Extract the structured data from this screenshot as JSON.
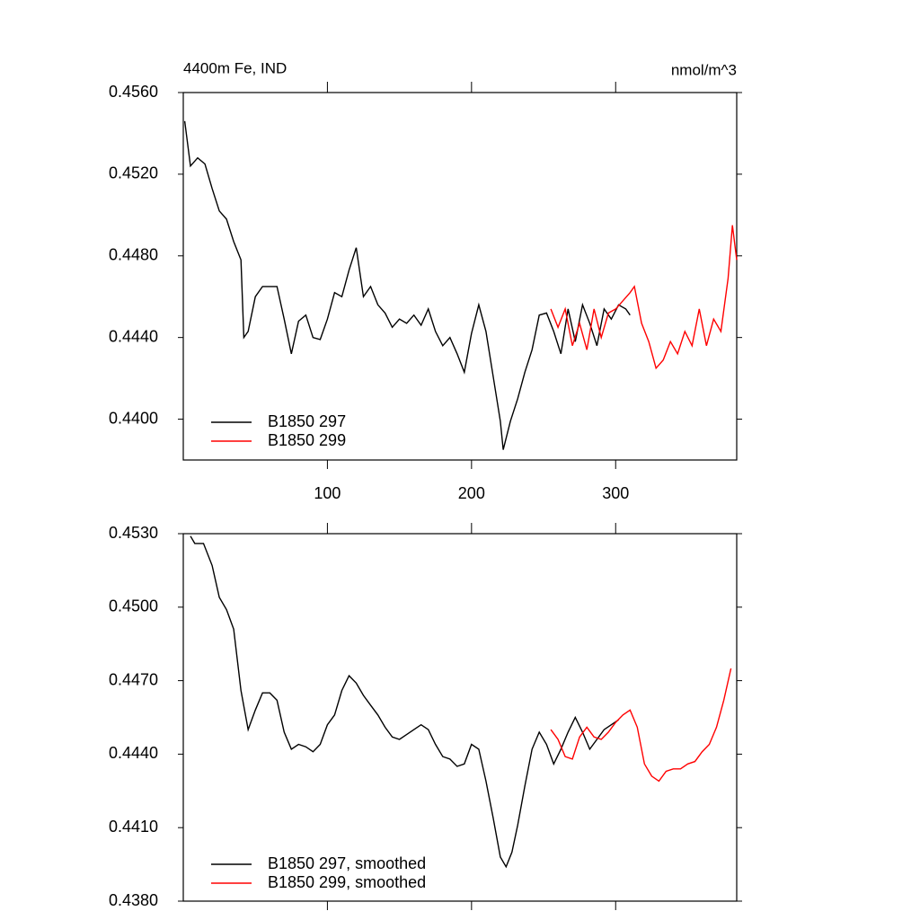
{
  "chart_data": [
    {
      "type": "line",
      "title": "4400m Fe, IND",
      "units": "nmol/m^3",
      "xlim": [
        0,
        384
      ],
      "xticks": [
        100,
        200,
        300
      ],
      "ylim": [
        0.438,
        0.456
      ],
      "yticks": [
        {
          "value": 0.456,
          "label": "0.4560"
        },
        {
          "value": 0.452,
          "label": "0.4520"
        },
        {
          "value": 0.448,
          "label": "0.4480"
        },
        {
          "value": 0.444,
          "label": "0.4440"
        },
        {
          "value": 0.44,
          "label": "0.4400"
        }
      ],
      "series": [
        {
          "name": "B1850 297",
          "color": "#000000",
          "x": [
            1,
            5,
            10,
            15,
            20,
            25,
            30,
            35,
            40,
            42,
            45,
            50,
            55,
            60,
            65,
            70,
            75,
            80,
            85,
            90,
            95,
            100,
            105,
            110,
            115,
            120,
            125,
            130,
            135,
            140,
            145,
            150,
            155,
            160,
            165,
            170,
            175,
            180,
            185,
            190,
            195,
            200,
            205,
            210,
            215,
            220,
            222,
            227,
            232,
            237,
            242,
            247,
            252,
            257,
            262,
            267,
            272,
            277,
            282,
            287,
            292,
            297,
            302,
            307,
            310
          ],
          "values": [
            0.4546,
            0.4524,
            0.4528,
            0.4525,
            0.4513,
            0.4502,
            0.4498,
            0.4487,
            0.4478,
            0.444,
            0.4443,
            0.446,
            0.4465,
            0.4465,
            0.4465,
            0.4449,
            0.4432,
            0.4448,
            0.4451,
            0.444,
            0.4439,
            0.4449,
            0.4462,
            0.446,
            0.4473,
            0.4484,
            0.446,
            0.4465,
            0.4456,
            0.4452,
            0.4445,
            0.4449,
            0.4447,
            0.4451,
            0.4446,
            0.4454,
            0.4443,
            0.4436,
            0.444,
            0.4432,
            0.4423,
            0.4442,
            0.4456,
            0.4443,
            0.4421,
            0.4399,
            0.4385,
            0.4399,
            0.441,
            0.4423,
            0.4434,
            0.4451,
            0.4452,
            0.4443,
            0.4432,
            0.4454,
            0.4438,
            0.4456,
            0.4447,
            0.4436,
            0.4454,
            0.4449,
            0.4456,
            0.4454,
            0.4451
          ]
        },
        {
          "name": "B1850 299",
          "color": "#ff0000",
          "x": [
            255,
            260,
            265,
            270,
            275,
            280,
            285,
            290,
            295,
            300,
            305,
            310,
            313,
            318,
            323,
            328,
            333,
            338,
            343,
            348,
            353,
            358,
            363,
            368,
            373,
            378,
            381,
            384
          ],
          "values": [
            0.4454,
            0.4445,
            0.4454,
            0.4436,
            0.4447,
            0.4434,
            0.4454,
            0.444,
            0.4452,
            0.4454,
            0.4458,
            0.4462,
            0.4465,
            0.4447,
            0.4438,
            0.4425,
            0.4429,
            0.4438,
            0.4432,
            0.4443,
            0.4436,
            0.4454,
            0.4436,
            0.4449,
            0.4443,
            0.4469,
            0.4495,
            0.4478
          ]
        }
      ]
    },
    {
      "type": "line",
      "xlim": [
        0,
        384
      ],
      "xticks": [
        100,
        200,
        300
      ],
      "ylim": [
        0.438,
        0.453
      ],
      "yticks": [
        {
          "value": 0.453,
          "label": "0.4530"
        },
        {
          "value": 0.45,
          "label": "0.4500"
        },
        {
          "value": 0.447,
          "label": "0.4470"
        },
        {
          "value": 0.444,
          "label": "0.4440"
        },
        {
          "value": 0.441,
          "label": "0.4410"
        },
        {
          "value": 0.438,
          "label": "0.4380"
        }
      ],
      "series": [
        {
          "name": "B1850 297, smoothed",
          "color": "#000000",
          "x": [
            5,
            8,
            14,
            20,
            25,
            30,
            35,
            40,
            45,
            50,
            55,
            60,
            65,
            70,
            75,
            80,
            85,
            90,
            95,
            100,
            105,
            110,
            115,
            120,
            125,
            130,
            135,
            140,
            145,
            150,
            155,
            160,
            165,
            170,
            175,
            180,
            185,
            190,
            195,
            200,
            205,
            210,
            215,
            220,
            224,
            228,
            232,
            237,
            242,
            247,
            252,
            257,
            262,
            267,
            272,
            277,
            282,
            287,
            292,
            297,
            302
          ],
          "values": [
            0.4529,
            0.4526,
            0.4526,
            0.4517,
            0.4504,
            0.4499,
            0.4491,
            0.4466,
            0.445,
            0.4458,
            0.4465,
            0.4465,
            0.4462,
            0.4449,
            0.4442,
            0.4444,
            0.4443,
            0.4441,
            0.4444,
            0.4452,
            0.4456,
            0.4466,
            0.4472,
            0.4469,
            0.4464,
            0.446,
            0.4456,
            0.4451,
            0.4447,
            0.4446,
            0.4448,
            0.445,
            0.4452,
            0.445,
            0.4444,
            0.4439,
            0.4438,
            0.4435,
            0.4436,
            0.4444,
            0.4442,
            0.4429,
            0.4414,
            0.4398,
            0.4394,
            0.44,
            0.4411,
            0.4427,
            0.4442,
            0.4449,
            0.4444,
            0.4436,
            0.4442,
            0.4449,
            0.4455,
            0.4449,
            0.4442,
            0.4446,
            0.445,
            0.4452,
            0.4454
          ]
        },
        {
          "name": "B1850 299, smoothed",
          "color": "#ff0000",
          "x": [
            255,
            260,
            265,
            270,
            275,
            280,
            285,
            290,
            295,
            300,
            305,
            310,
            315,
            320,
            325,
            330,
            335,
            340,
            345,
            350,
            355,
            360,
            365,
            370,
            375,
            380
          ],
          "values": [
            0.445,
            0.4446,
            0.4439,
            0.4438,
            0.4447,
            0.4451,
            0.4447,
            0.4446,
            0.4449,
            0.4453,
            0.4456,
            0.4458,
            0.4451,
            0.4436,
            0.4431,
            0.4429,
            0.4433,
            0.4434,
            0.4434,
            0.4436,
            0.4437,
            0.4441,
            0.4444,
            0.4451,
            0.4462,
            0.4475
          ]
        }
      ]
    }
  ]
}
